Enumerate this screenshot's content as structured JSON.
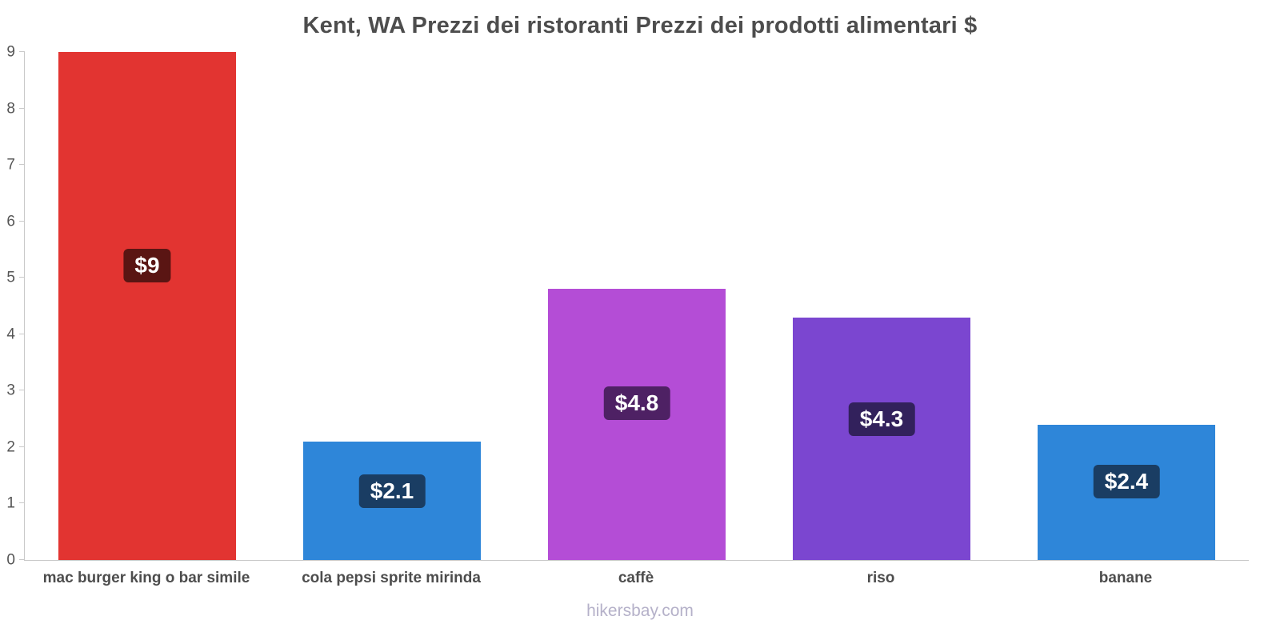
{
  "chart_data": {
    "type": "bar",
    "title": "Kent, WA Prezzi dei ristoranti Prezzi dei prodotti alimentari $",
    "categories": [
      "mac burger king o bar simile",
      "cola pepsi sprite mirinda",
      "caffè",
      "riso",
      "banane"
    ],
    "values": [
      9,
      2.1,
      4.8,
      4.3,
      2.4
    ],
    "value_labels": [
      "$9",
      "$2.1",
      "$4.8",
      "$4.3",
      "$2.4"
    ],
    "bar_colors": [
      "#e23431",
      "#2e86d9",
      "#b44dd6",
      "#7b46d0",
      "#2e86d9"
    ],
    "value_label_bg": [
      "#5a1513",
      "#1a3d63",
      "#4e2164",
      "#32215c",
      "#1a3d63"
    ],
    "xlabel": "",
    "ylabel": "",
    "ylim": [
      0,
      9
    ],
    "yticks": [
      0,
      1,
      2,
      3,
      4,
      5,
      6,
      7,
      8,
      9
    ],
    "grid": false,
    "legend": false,
    "axis_color": "#c9c9c9",
    "tick_text_color": "#555555",
    "title_color": "#4d4d4d",
    "watermark": "hikersbay.com",
    "watermark_color": "#b5b1c9"
  }
}
